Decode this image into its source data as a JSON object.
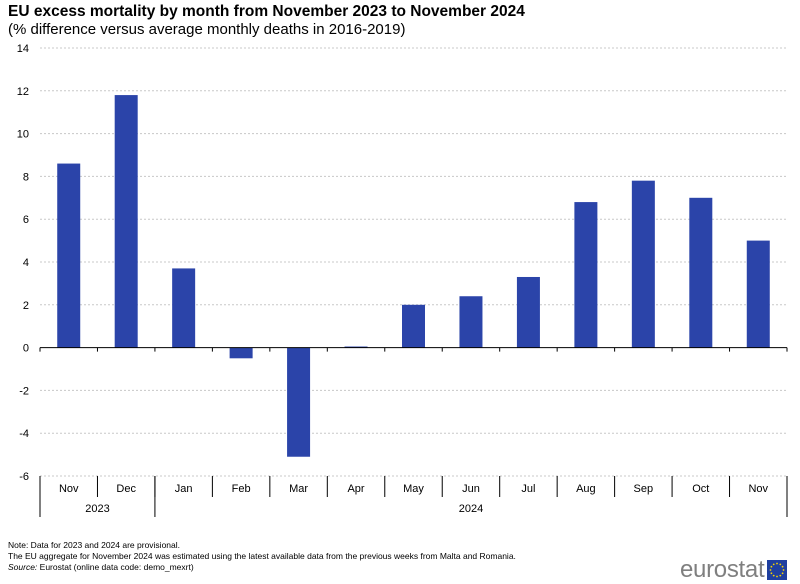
{
  "chart_data": {
    "type": "bar",
    "title": "EU excess mortality by month from November 2023 to November 2024",
    "subtitle": "(% difference versus average monthly deaths in 2016-2019)",
    "categories": [
      "Nov",
      "Dec",
      "Jan",
      "Feb",
      "Mar",
      "Apr",
      "May",
      "Jun",
      "Jul",
      "Aug",
      "Sep",
      "Oct",
      "Nov"
    ],
    "year_groups": [
      {
        "label": "2023",
        "count": 2
      },
      {
        "label": "2024",
        "count": 11
      }
    ],
    "values": [
      8.6,
      11.8,
      3.7,
      -0.5,
      -5.1,
      0.05,
      2.0,
      2.4,
      3.3,
      6.8,
      7.8,
      7.0,
      5.0
    ],
    "ylim": [
      -6,
      14
    ],
    "yticks": [
      14,
      12,
      10,
      8,
      6,
      4,
      2,
      0,
      -2,
      -4,
      -6
    ],
    "grid": true,
    "bar_color": "#2b44a9"
  },
  "notes": {
    "line1": "Note: Data  for 2023 and 2024 are provisional.",
    "line2": "The EU  aggregate for November 2024 was estimated using the latest available data  from the previous weeks from Malta and Romania.",
    "source_label": "Source:",
    "source_text": " Eurostat (online data code: demo_mexrt)"
  },
  "logo": {
    "text": "eurostat",
    "icon": "eu-flag-icon"
  }
}
